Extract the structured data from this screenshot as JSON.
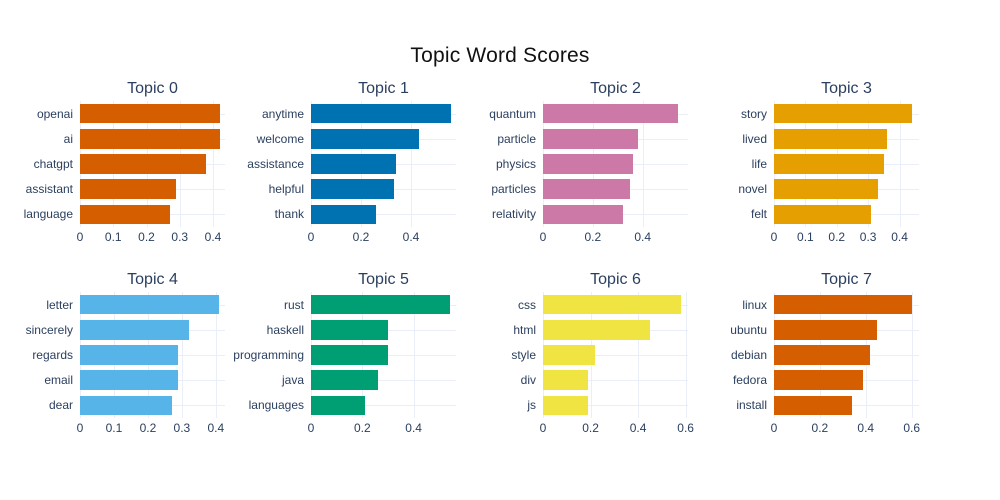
{
  "title": "Topic Word Scores",
  "style": {
    "background": "#ffffff",
    "grid_color": "#e9eef8",
    "label_color": "#2a3f5f",
    "title_color": "#111111"
  },
  "chart_data": {
    "type": "bar",
    "orientation": "horizontal",
    "title": "Topic Word Scores",
    "grid": true,
    "legend": false,
    "layout": {
      "rows": 2,
      "cols": 4
    },
    "subplots": [
      {
        "title": "Topic 0",
        "color": "#D55E00",
        "categories": [
          "openai",
          "ai",
          "chatgpt",
          "assistant",
          "language"
        ],
        "values": [
          0.42,
          0.42,
          0.38,
          0.29,
          0.27
        ],
        "xticks": [
          "0",
          "0.1",
          "0.2",
          "0.3",
          "0.4"
        ],
        "xtick_values": [
          0,
          0.1,
          0.2,
          0.3,
          0.4
        ],
        "xlim": [
          0,
          0.436
        ]
      },
      {
        "title": "Topic 1",
        "color": "#0072B2",
        "categories": [
          "anytime",
          "welcome",
          "assistance",
          "helpful",
          "thank"
        ],
        "values": [
          0.56,
          0.43,
          0.34,
          0.33,
          0.26
        ],
        "xticks": [
          "0",
          "0.2",
          "0.4"
        ],
        "xtick_values": [
          0,
          0.2,
          0.4
        ],
        "xlim": [
          0,
          0.58
        ]
      },
      {
        "title": "Topic 2",
        "color": "#CC79A7",
        "categories": [
          "quantum",
          "particle",
          "physics",
          "particles",
          "relativity"
        ],
        "values": [
          0.54,
          0.38,
          0.36,
          0.35,
          0.32
        ],
        "xticks": [
          "0",
          "0.2",
          "0.4"
        ],
        "xtick_values": [
          0,
          0.2,
          0.4
        ],
        "xlim": [
          0,
          0.582
        ]
      },
      {
        "title": "Topic 3",
        "color": "#E69F00",
        "categories": [
          "story",
          "lived",
          "life",
          "novel",
          "felt"
        ],
        "values": [
          0.44,
          0.36,
          0.35,
          0.33,
          0.31
        ],
        "xticks": [
          "0",
          "0.1",
          "0.2",
          "0.3",
          "0.4"
        ],
        "xtick_values": [
          0,
          0.1,
          0.2,
          0.3,
          0.4
        ],
        "xlim": [
          0,
          0.462
        ]
      },
      {
        "title": "Topic 4",
        "color": "#56B4E9",
        "categories": [
          "letter",
          "sincerely",
          "regards",
          "email",
          "dear"
        ],
        "values": [
          0.41,
          0.32,
          0.29,
          0.288,
          0.272
        ],
        "xticks": [
          "0",
          "0.1",
          "0.2",
          "0.3",
          "0.4"
        ],
        "xtick_values": [
          0,
          0.1,
          0.2,
          0.3,
          0.4
        ],
        "xlim": [
          0,
          0.427
        ]
      },
      {
        "title": "Topic 5",
        "color": "#009E73",
        "categories": [
          "rust",
          "haskell",
          "programming",
          "java",
          "languages"
        ],
        "values": [
          0.54,
          0.3,
          0.3,
          0.26,
          0.21
        ],
        "xticks": [
          "0",
          "0.2",
          "0.4"
        ],
        "xtick_values": [
          0,
          0.2,
          0.4
        ],
        "xlim": [
          0,
          0.565
        ]
      },
      {
        "title": "Topic 6",
        "color": "#F0E442",
        "categories": [
          "css",
          "html",
          "style",
          "div",
          "js"
        ],
        "values": [
          0.58,
          0.45,
          0.22,
          0.19,
          0.19
        ],
        "xticks": [
          "0",
          "0.2",
          "0.4",
          "0.6"
        ],
        "xtick_values": [
          0,
          0.2,
          0.4,
          0.6
        ],
        "xlim": [
          0,
          0.61
        ]
      },
      {
        "title": "Topic 7",
        "color": "#D55E00",
        "categories": [
          "linux",
          "ubuntu",
          "debian",
          "fedora",
          "install"
        ],
        "values": [
          0.6,
          0.45,
          0.42,
          0.39,
          0.34
        ],
        "xticks": [
          "0",
          "0.2",
          "0.4",
          "0.6"
        ],
        "xtick_values": [
          0,
          0.2,
          0.4,
          0.6
        ],
        "xlim": [
          0,
          0.632
        ]
      }
    ]
  }
}
